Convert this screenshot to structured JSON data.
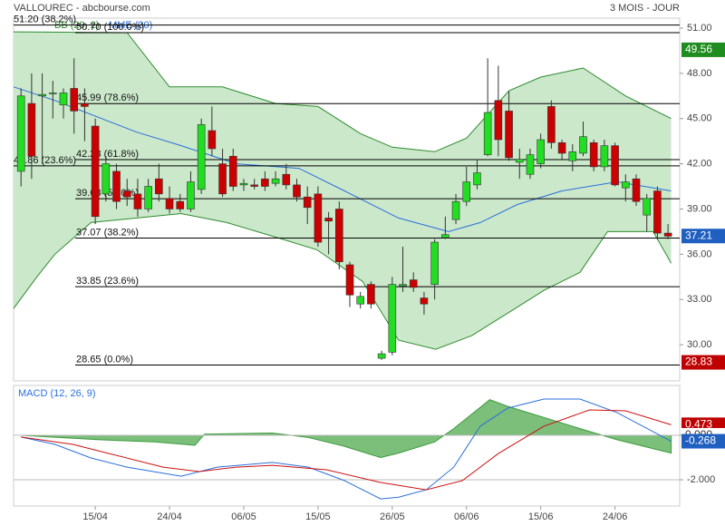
{
  "header": {
    "title": "VALLOUREC - abcbourse.com",
    "period": "3 MOIS - JOUR"
  },
  "chart_data": [
    {
      "type": "candlestick",
      "xlim": [
        -0.7,
        62.1
      ],
      "xticks": [
        {
          "value": 7,
          "label": "15/04"
        },
        {
          "value": 14,
          "label": "24/04"
        },
        {
          "value": 21,
          "label": "06/05"
        },
        {
          "value": 28,
          "label": "15/05"
        },
        {
          "value": 35,
          "label": "26/05"
        },
        {
          "value": 42,
          "label": "06/06"
        },
        {
          "value": 49,
          "label": "15/06"
        },
        {
          "value": 56,
          "label": "24/06"
        }
      ],
      "ylim": [
        27.6,
        51.66
      ],
      "yticks": [
        {
          "value": 51,
          "label": "51.00"
        },
        {
          "value": 48,
          "label": "48.00"
        },
        {
          "value": 45,
          "label": "45.00"
        },
        {
          "value": 42,
          "label": "42.00"
        },
        {
          "value": 39,
          "label": "39.00"
        },
        {
          "value": 36,
          "label": "36.00"
        },
        {
          "value": 33,
          "label": "33.00"
        },
        {
          "value": 30,
          "label": "30.00"
        }
      ],
      "up_color": "#22dd22",
      "down_color": "#cc0000",
      "open": [
        41.5,
        46,
        46.5,
        46.7,
        45.9,
        47,
        46,
        44.5,
        40,
        41.5,
        40.2,
        40,
        39,
        41,
        39.7,
        39.5,
        39,
        40.3,
        44.2,
        42,
        42.5,
        40.6,
        40.6,
        41,
        40.7,
        41.3,
        40.6,
        39.8,
        40,
        38.4,
        39,
        35.3,
        32.7,
        34,
        29.1,
        29.5,
        33.9,
        34.3,
        33.1,
        34,
        37.1,
        38.3,
        39.5,
        40.6,
        42.6,
        46.2,
        45.5,
        42.1,
        41.3,
        42,
        45.8,
        43.4,
        42.2,
        42.7,
        43.4,
        41.8,
        43.2,
        40.4,
        41,
        38.6,
        40.2,
        37.4
      ],
      "high": [
        47,
        48,
        48,
        47.5,
        47,
        49,
        47,
        45,
        42.5,
        42,
        41,
        41,
        41,
        42,
        40.5,
        40,
        41.5,
        45,
        45.8,
        43,
        43,
        41,
        41,
        41.5,
        41.5,
        42,
        41,
        40.5,
        40.5,
        38.8,
        39.5,
        35.5,
        33.5,
        34.2,
        29.6,
        34.5,
        36.5,
        34.8,
        33.5,
        37,
        38.5,
        40,
        41.8,
        42.3,
        49,
        48.5,
        46.8,
        43,
        43,
        44,
        46.2,
        43.6,
        43.3,
        44.8,
        43.6,
        43.6,
        43.4,
        41.3,
        41.3,
        40,
        40.5,
        38
      ],
      "low": [
        40.5,
        41,
        42,
        45,
        45,
        44,
        43.5,
        38,
        39.5,
        39,
        39.2,
        38.5,
        38.8,
        39.5,
        38.7,
        38.8,
        38.8,
        40,
        42.5,
        39.8,
        40.2,
        40.2,
        40.3,
        40.2,
        40.5,
        40.3,
        39.5,
        38,
        36.5,
        36,
        35,
        32.5,
        32.4,
        32.4,
        29,
        29.3,
        33.5,
        33.5,
        32,
        33,
        37,
        38,
        39.2,
        40.3,
        42.5,
        42.5,
        42.2,
        41,
        41,
        41.7,
        43,
        42.3,
        41.5,
        42.5,
        41.5,
        41.5,
        40.5,
        39.5,
        39.2,
        37.5,
        37,
        37
      ],
      "close": [
        46.5,
        42.5,
        46.6,
        46.7,
        46.7,
        45.5,
        45.8,
        38.5,
        42,
        39.5,
        39.8,
        39,
        40.5,
        40,
        39,
        39,
        40.8,
        44.6,
        43,
        40,
        40.5,
        40.7,
        40.5,
        40.5,
        41,
        40.6,
        39.8,
        39.1,
        36.8,
        38.2,
        35.5,
        33.3,
        33.2,
        32.7,
        29.4,
        34,
        34,
        33.8,
        32.7,
        36.8,
        37.3,
        39.5,
        40.8,
        41.4,
        45.4,
        43.6,
        42.4,
        42.3,
        42.6,
        43.6,
        43.4,
        42.7,
        42.8,
        43.8,
        41.8,
        43.2,
        40.6,
        40.8,
        39.5,
        39.7,
        37.4,
        37.2
      ],
      "bands": {
        "name": "BB (20, 2)",
        "color": "#2e8b2e",
        "fill": "#cbe8cb",
        "upper": {
          "x": [
            -0.7,
            10,
            14,
            19,
            24,
            28,
            32,
            35,
            39,
            42,
            46,
            49,
            53,
            57,
            61.3
          ],
          "values": [
            50.75,
            50.7,
            47.1,
            47.1,
            46,
            45.8,
            44,
            43.1,
            42.8,
            43.7,
            46.85,
            47.75,
            48.35,
            46.5,
            45
          ]
        },
        "lower": {
          "x": [
            -0.7,
            1.5,
            3.2,
            6.6,
            15.1,
            19.4,
            23.7,
            27.9,
            32.2,
            35.6,
            39.1,
            42.5,
            45.9,
            49.3,
            52.7,
            55.3,
            59.6,
            61.3
          ],
          "values": [
            32.4,
            34.5,
            36,
            38.1,
            38.7,
            38.1,
            37.2,
            36.3,
            34.2,
            30.3,
            29.7,
            30.6,
            32.1,
            33.6,
            34.8,
            37.5,
            37.5,
            35.4
          ]
        }
      },
      "ma": {
        "name": "MME (30)",
        "color": "#2a6fdb",
        "x": [
          -0.7,
          3.2,
          10.9,
          15.1,
          20.3,
          26.2,
          30.5,
          35.6,
          40.3,
          43.3,
          46.8,
          51,
          56.2,
          61.3
        ],
        "values": [
          47.1,
          46.2,
          44.1,
          43.2,
          42,
          41.7,
          40.2,
          38.4,
          37.5,
          38.1,
          39.3,
          40.2,
          40.8,
          40.2
        ]
      },
      "levels": [
        {
          "value": 50.7,
          "label": "50.70 (100.0%)"
        },
        {
          "value": 45.99,
          "label": "45.99 (78.6%)"
        },
        {
          "value": 42.28,
          "label": "42.28 (61.8%)"
        },
        {
          "value": 39.68,
          "label": "39.68 (50.0%)"
        },
        {
          "value": 37.07,
          "label": "37.07 (38.2%)"
        },
        {
          "value": 33.85,
          "label": "33.85 (23.6%)"
        },
        {
          "value": 28.65,
          "label": "28.65 (0.0%)"
        }
      ],
      "levels_left": [
        {
          "value": 51.2,
          "label": "51.20 (38.2%)"
        },
        {
          "value": 41.86,
          "label": "41.86 (23.6%)"
        }
      ],
      "price_tags": [
        {
          "value": 49.56,
          "color": "#1e8c1e"
        },
        {
          "value": 37.21,
          "color": "#1f5fbf"
        },
        {
          "value": 28.83,
          "color": "#c00000"
        }
      ]
    },
    {
      "type": "line",
      "title": "MACD (12, 26, 9)",
      "xlim": [
        -0.7,
        62.1
      ],
      "ylim": [
        -3.18,
        2.24
      ],
      "yticks": [
        {
          "value": 0,
          "label": "0.000"
        },
        {
          "value": -2,
          "label": "-2.000"
        }
      ],
      "histogram": {
        "color": "#3c9a3c",
        "fill": "#7bbf7b",
        "x": [
          0,
          7.4,
          12.6,
          16.4,
          17.3,
          23.7,
          27.1,
          30.5,
          33.9,
          35.6,
          39,
          40.8,
          44.2,
          45.9,
          49.3,
          52.7,
          56.2,
          61.3
        ],
        "values": [
          0,
          -0.2,
          -0.3,
          -0.45,
          0.05,
          0.1,
          -0.1,
          -0.5,
          -1,
          -0.8,
          -0.3,
          0.3,
          1.6,
          1.3,
          0.8,
          0.3,
          -0.2,
          -0.8
        ]
      },
      "series": [
        {
          "color": "#2a6fdb",
          "x": [
            0,
            3.2,
            6.6,
            10,
            15.1,
            18.5,
            23.7,
            27.1,
            30.5,
            33.9,
            35.6,
            38.2,
            40.8,
            43.3,
            45.9,
            49.3,
            52.7,
            56.2,
            61.3
          ],
          "values": [
            -0.08,
            -0.41,
            -1.02,
            -1.43,
            -1.84,
            -1.43,
            -1.22,
            -1.43,
            -2.04,
            -2.86,
            -2.78,
            -2.45,
            -1.43,
            0.41,
            1.22,
            1.63,
            1.63,
            1.02,
            -0.27
          ]
        },
        {
          "color": "#cc1111",
          "x": [
            0,
            4.9,
            8.3,
            13.4,
            16.8,
            20.3,
            23.7,
            28.8,
            33.9,
            38.2,
            41.6,
            45,
            49.3,
            53.6,
            57,
            61.3
          ],
          "values": [
            -0.08,
            -0.41,
            -0.82,
            -1.43,
            -1.63,
            -1.43,
            -1.35,
            -1.55,
            -2.12,
            -2.45,
            -2.04,
            -0.82,
            0.41,
            1.14,
            1.1,
            0.47
          ]
        }
      ],
      "price_tags": [
        {
          "value": 0.473,
          "color": "#c00000"
        },
        {
          "value": 0,
          "label": "0.000",
          "color": "#ffffff"
        },
        {
          "value": -0.268,
          "color": "#1f5fbf"
        }
      ]
    }
  ]
}
